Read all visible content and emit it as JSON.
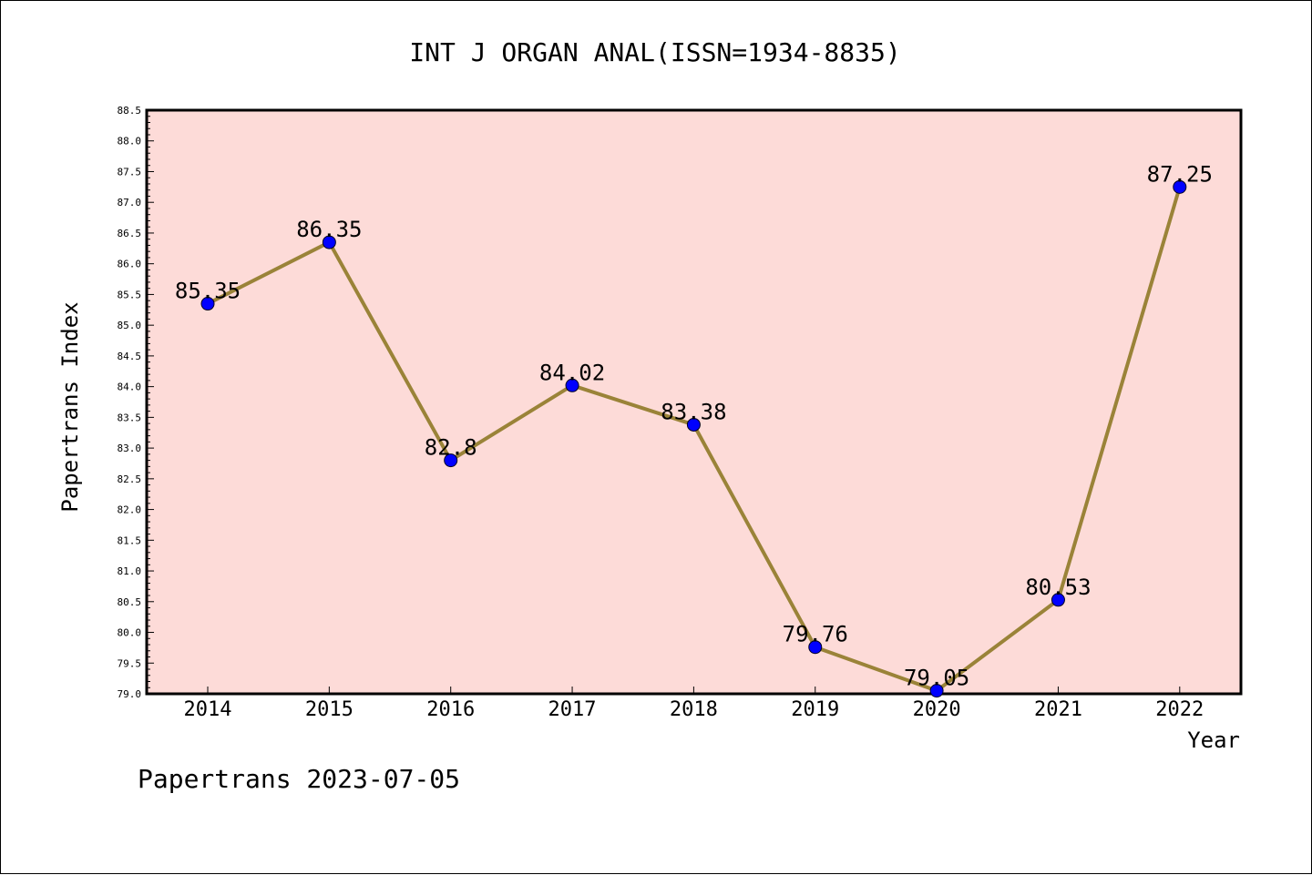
{
  "chart_data": {
    "type": "line",
    "title": "INT J ORGAN ANAL(ISSN=1934-8835)",
    "xlabel": "Year",
    "ylabel": "Papertrans Index",
    "x": [
      "2014",
      "2015",
      "2016",
      "2017",
      "2018",
      "2019",
      "2020",
      "2021",
      "2022"
    ],
    "series": [
      {
        "values": [
          85.35,
          86.35,
          82.8,
          84.02,
          83.38,
          79.76,
          79.05,
          80.53,
          87.25
        ],
        "labels": [
          "85.35",
          "86.35",
          "82.8",
          "84.02",
          "83.38",
          "79.76",
          "79.05",
          "80.53",
          "87.25"
        ]
      }
    ],
    "ylim": [
      79.0,
      88.5
    ],
    "ytick_step": 0.5,
    "grid": false,
    "plot_background": "#fddbd8",
    "line_color": "#9a8338",
    "marker_color": "#0000ff"
  },
  "footer": "Papertrans 2023-07-05"
}
